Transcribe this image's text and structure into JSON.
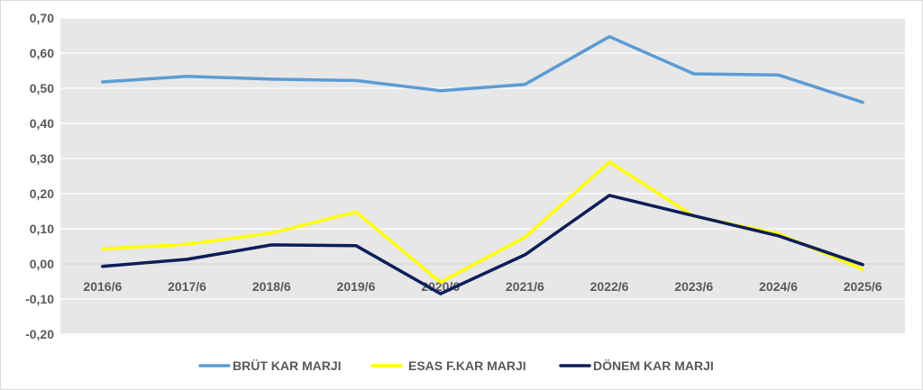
{
  "chart_data": {
    "type": "line",
    "title": "",
    "xlabel": "",
    "ylabel": "",
    "categories": [
      "2016/6",
      "2017/6",
      "2018/6",
      "2019/6",
      "2020/6",
      "2021/6",
      "2022/6",
      "2023/6",
      "2024/6",
      "2025/6"
    ],
    "ylim": [
      -0.2,
      0.7
    ],
    "yticks": [
      "-0,20",
      "-0,10",
      "0,00",
      "0,10",
      "0,20",
      "0,30",
      "0,40",
      "0,50",
      "0,60",
      "0,70"
    ],
    "grid": true,
    "legend_position": "bottom",
    "series": [
      {
        "name": "BRÜT KAR MARJI",
        "color": "#5b9bd5",
        "values": [
          0.518,
          0.534,
          0.526,
          0.522,
          0.493,
          0.511,
          0.647,
          0.541,
          0.538,
          0.46
        ]
      },
      {
        "name": "ESAS F.KAR MARJI",
        "color": "#ffff00",
        "values": [
          0.043,
          0.056,
          0.088,
          0.148,
          -0.052,
          0.076,
          0.29,
          0.136,
          0.086,
          -0.015
        ]
      },
      {
        "name": "DÖNEM KAR MARJI",
        "color": "#0c1e5a",
        "values": [
          -0.007,
          0.013,
          0.054,
          0.052,
          -0.085,
          0.026,
          0.195,
          0.137,
          0.08,
          -0.002
        ]
      }
    ]
  }
}
